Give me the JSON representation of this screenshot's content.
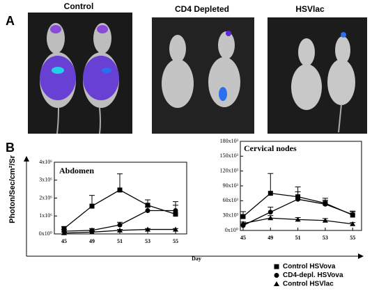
{
  "panel_labels": [
    "A",
    "B"
  ],
  "image_labels": [
    "Control",
    "CD4 Depleted",
    "HSVlac"
  ],
  "y_axis_label": "Photon/Sec/cm²/Sr",
  "x_axis_label": "Day",
  "chart_data": [
    {
      "type": "line",
      "title": "Abdomen",
      "categories": [
        "45",
        "49",
        "51",
        "53",
        "55"
      ],
      "ylim": [
        0,
        4000000
      ],
      "yticks": [
        {
          "value": 0,
          "label": "0x10⁰"
        },
        {
          "value": 1000000,
          "label": "1x10⁶"
        },
        {
          "value": 2000000,
          "label": "2x10⁶"
        },
        {
          "value": 3000000,
          "label": "3x10⁶"
        },
        {
          "value": 4000000,
          "label": "4x10⁶"
        }
      ],
      "series": [
        {
          "name": "Control HSVova",
          "color": "#000000",
          "marker": "square",
          "values": [
            300000,
            1550000,
            2450000,
            1600000,
            1100000
          ],
          "errors": [
            100000,
            600000,
            900000,
            300000,
            700000
          ]
        },
        {
          "name": "CD4-depl. HSVova",
          "color": "#000000",
          "marker": "circle",
          "values": [
            150000,
            200000,
            500000,
            1300000,
            1300000
          ],
          "errors": [
            100000,
            100000,
            150000,
            200000,
            300000
          ]
        },
        {
          "name": "Control HSVlac",
          "color": "#000000",
          "marker": "triangle",
          "values": [
            50000,
            100000,
            200000,
            250000,
            250000
          ],
          "errors": [
            50000,
            50000,
            50000,
            50000,
            50000
          ]
        }
      ]
    },
    {
      "type": "line",
      "title": "Cervical nodes",
      "categories": [
        "45",
        "49",
        "51",
        "53",
        "55"
      ],
      "ylim": [
        0,
        180000
      ],
      "yticks": [
        {
          "value": 0,
          "label": "0x10⁰"
        },
        {
          "value": 30000,
          "label": "30x10³"
        },
        {
          "value": 60000,
          "label": "60x10³"
        },
        {
          "value": 90000,
          "label": "90x10³"
        },
        {
          "value": 120000,
          "label": "120x10³"
        },
        {
          "value": 150000,
          "label": "150x10³"
        },
        {
          "value": 180000,
          "label": "180x10³"
        }
      ],
      "series": [
        {
          "name": "Control HSVova",
          "color": "#000000",
          "marker": "square",
          "values": [
            28000,
            75000,
            68000,
            55000,
            31000
          ],
          "errors": [
            10000,
            40000,
            20000,
            10000,
            8000
          ]
        },
        {
          "name": "CD4-depl. HSVova",
          "color": "#000000",
          "marker": "circle",
          "values": [
            10000,
            37000,
            63000,
            53000,
            32000
          ],
          "errors": [
            4000,
            10000,
            15000,
            8000,
            6000
          ]
        },
        {
          "name": "Control HSVlac",
          "color": "#000000",
          "marker": "triangle",
          "values": [
            14000,
            25000,
            22000,
            20000,
            13000
          ],
          "errors": [
            3000,
            5000,
            4000,
            4000,
            3000
          ]
        }
      ]
    }
  ]
}
